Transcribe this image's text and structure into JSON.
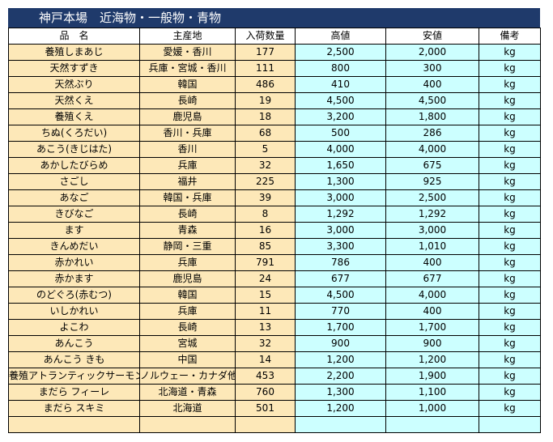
{
  "title": "神戸本場　近海物・一般物・青物",
  "headers": [
    "品　名",
    "主産地",
    "入荷数量",
    "高値",
    "安値",
    "備考"
  ],
  "rows": [
    [
      "養殖しまあじ",
      "愛媛・香川",
      "177",
      "2,500",
      "2,000",
      "kg"
    ],
    [
      "天然すずき",
      "兵庫・宮城・香川",
      "111",
      "800",
      "300",
      "kg"
    ],
    [
      "天然ぶり",
      "韓国",
      "486",
      "410",
      "400",
      "kg"
    ],
    [
      "天然くえ",
      "長崎",
      "19",
      "4,500",
      "4,500",
      "kg"
    ],
    [
      "養殖くえ",
      "鹿児島",
      "18",
      "3,200",
      "1,800",
      "kg"
    ],
    [
      "ちぬ(くろだい)",
      "香川・兵庫",
      "68",
      "500",
      "286",
      "kg"
    ],
    [
      "あこう(きじはた)",
      "香川",
      "5",
      "4,000",
      "4,000",
      "kg"
    ],
    [
      "あかしたびらめ",
      "兵庫",
      "32",
      "1,650",
      "675",
      "kg"
    ],
    [
      "さごし",
      "福井",
      "225",
      "1,300",
      "925",
      "kg"
    ],
    [
      "あなご",
      "韓国・兵庫",
      "39",
      "3,000",
      "2,500",
      "kg"
    ],
    [
      "きびなご",
      "長崎",
      "8",
      "1,292",
      "1,292",
      "kg"
    ],
    [
      "ます",
      "青森",
      "16",
      "3,000",
      "3,000",
      "kg"
    ],
    [
      "きんめだい",
      "静岡・三重",
      "85",
      "3,300",
      "1,010",
      "kg"
    ],
    [
      "赤かれい",
      "兵庫",
      "791",
      "786",
      "400",
      "kg"
    ],
    [
      "赤かます",
      "鹿児島",
      "24",
      "677",
      "677",
      "kg"
    ],
    [
      "のどぐろ(赤むつ)",
      "韓国",
      "15",
      "4,500",
      "4,000",
      "kg"
    ],
    [
      "いしかれい",
      "兵庫",
      "11",
      "770",
      "400",
      "kg"
    ],
    [
      "よこわ",
      "長崎",
      "13",
      "1,700",
      "1,700",
      "kg"
    ],
    [
      "あんこう",
      "宮城",
      "32",
      "900",
      "900",
      "kg"
    ],
    [
      "あんこう きも",
      "中国",
      "14",
      "1,200",
      "1,200",
      "kg"
    ],
    [
      "養殖アトランティックサーモン",
      "ノルウェー・カナダ他",
      "453",
      "2,200",
      "1,900",
      "kg"
    ],
    [
      "まだら フィーレ",
      "北海道・青森",
      "760",
      "1,300",
      "1,100",
      "kg"
    ],
    [
      "まだら スキミ",
      "北海道",
      "501",
      "1,200",
      "1,000",
      "kg"
    ]
  ],
  "colors": {
    "title_bg": "#1f3a6b",
    "name_bg": "#fde8b8",
    "value_bg": "#ccffff"
  }
}
